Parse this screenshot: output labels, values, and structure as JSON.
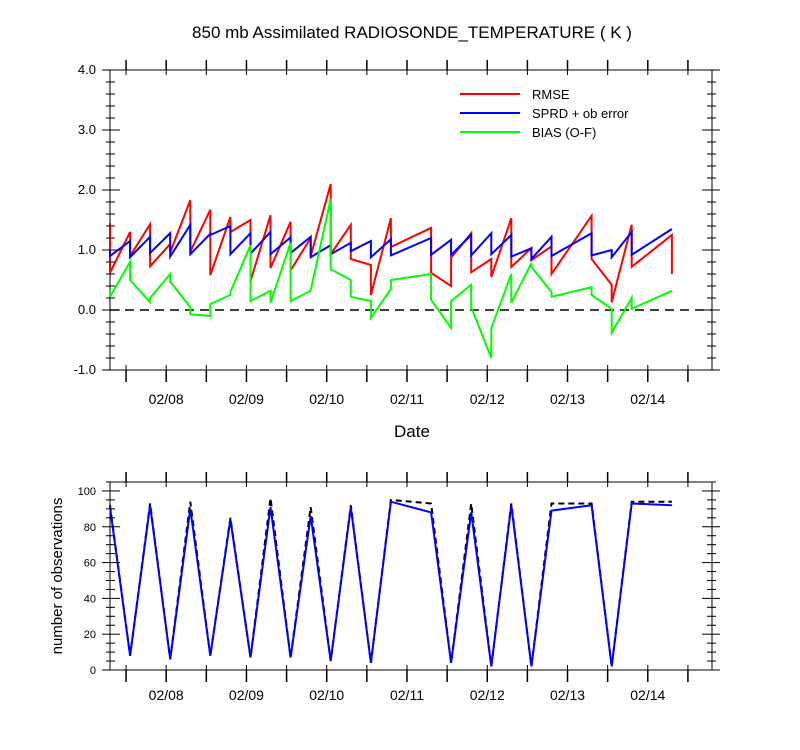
{
  "title": "850 mb Assimilated RADIOSONDE_TEMPERATURE ( K )",
  "colors": {
    "rmse": "#ff0000",
    "sprd": "#0000ff",
    "bias": "#00ff00",
    "possible": "#000000",
    "used": "#0000ff",
    "zero_line": "#000000"
  },
  "chart_data": [
    {
      "type": "line",
      "title": "850 mb Assimilated RADIOSONDE_TEMPERATURE ( K )",
      "xlabel": "Date",
      "ylabel": "",
      "x_ticks": [
        "02/08",
        "02/09",
        "02/10",
        "02/11",
        "02/12",
        "02/13",
        "02/14"
      ],
      "x_tick_positions": [
        1,
        2,
        3,
        4,
        5,
        6,
        7
      ],
      "xlim": [
        0.3,
        7.8
      ],
      "ylim": [
        -1.0,
        4.0
      ],
      "y_ticks": [
        "-1.0",
        "0.0",
        "1.0",
        "2.0",
        "3.0",
        "4.0"
      ],
      "y_tick_values": [
        -1,
        0,
        1,
        2,
        3,
        4
      ],
      "legend": [
        "RMSE",
        "SPRD + ob error",
        "BIAS (O-F)"
      ],
      "legend_position": "top-right",
      "zero_line": {
        "value": 0,
        "style": "dashed"
      },
      "series": [
        {
          "name": "RMSE",
          "color_key": "rmse",
          "points": [
            [
              0.3,
              1.45
            ],
            [
              0.3,
              0.62
            ],
            [
              0.55,
              1.3
            ],
            [
              0.55,
              0.9
            ],
            [
              0.8,
              1.43
            ],
            [
              0.8,
              0.73
            ],
            [
              1.05,
              1.1
            ],
            [
              1.05,
              0.96
            ],
            [
              1.3,
              1.83
            ],
            [
              1.3,
              0.97
            ],
            [
              1.55,
              1.67
            ],
            [
              1.55,
              0.58
            ],
            [
              1.8,
              1.55
            ],
            [
              1.8,
              1.3
            ],
            [
              2.05,
              1.5
            ],
            [
              2.05,
              0.48
            ],
            [
              2.3,
              1.58
            ],
            [
              2.3,
              0.7
            ],
            [
              2.55,
              1.47
            ],
            [
              2.55,
              0.66
            ],
            [
              2.8,
              1.2
            ],
            [
              2.8,
              0.9
            ],
            [
              3.05,
              2.1
            ],
            [
              3.05,
              0.93
            ],
            [
              3.3,
              1.42
            ],
            [
              3.3,
              0.85
            ],
            [
              3.55,
              0.75
            ],
            [
              3.55,
              0.25
            ],
            [
              3.8,
              1.53
            ],
            [
              3.8,
              1.05
            ],
            [
              4.3,
              1.37
            ],
            [
              4.3,
              0.62
            ],
            [
              4.55,
              0.4
            ],
            [
              4.55,
              0.87
            ],
            [
              4.8,
              1.28
            ],
            [
              4.8,
              0.63
            ],
            [
              5.05,
              0.85
            ],
            [
              5.05,
              0.55
            ],
            [
              5.3,
              1.53
            ],
            [
              5.3,
              0.72
            ],
            [
              5.55,
              1.03
            ],
            [
              5.55,
              0.83
            ],
            [
              5.8,
              1.06
            ],
            [
              5.8,
              0.6
            ],
            [
              6.3,
              1.57
            ],
            [
              6.3,
              0.85
            ],
            [
              6.55,
              0.42
            ],
            [
              6.55,
              0.13
            ],
            [
              6.8,
              1.42
            ],
            [
              6.8,
              0.72
            ],
            [
              7.3,
              1.25
            ],
            [
              7.3,
              0.6
            ]
          ]
        },
        {
          "name": "SPRD + ob error",
          "color_key": "sprd",
          "points": [
            [
              0.3,
              1.0
            ],
            [
              0.3,
              0.9
            ],
            [
              0.55,
              1.15
            ],
            [
              0.55,
              0.88
            ],
            [
              0.8,
              1.22
            ],
            [
              0.8,
              0.95
            ],
            [
              1.05,
              1.28
            ],
            [
              1.05,
              0.89
            ],
            [
              1.3,
              1.42
            ],
            [
              1.3,
              0.93
            ],
            [
              1.55,
              1.27
            ],
            [
              1.55,
              1.25
            ],
            [
              1.8,
              1.4
            ],
            [
              1.8,
              0.93
            ],
            [
              2.05,
              1.28
            ],
            [
              2.05,
              0.94
            ],
            [
              2.3,
              1.3
            ],
            [
              2.3,
              0.93
            ],
            [
              2.55,
              1.21
            ],
            [
              2.55,
              0.95
            ],
            [
              2.8,
              1.22
            ],
            [
              2.8,
              0.88
            ],
            [
              3.05,
              1.08
            ],
            [
              3.05,
              0.93
            ],
            [
              3.3,
              1.12
            ],
            [
              3.3,
              0.98
            ],
            [
              3.55,
              1.15
            ],
            [
              3.55,
              0.88
            ],
            [
              3.8,
              1.18
            ],
            [
              3.8,
              0.91
            ],
            [
              4.3,
              1.2
            ],
            [
              4.3,
              0.92
            ],
            [
              4.55,
              1.17
            ],
            [
              4.55,
              0.92
            ],
            [
              4.8,
              1.25
            ],
            [
              4.8,
              0.91
            ],
            [
              5.05,
              1.28
            ],
            [
              5.05,
              0.93
            ],
            [
              5.3,
              1.25
            ],
            [
              5.3,
              0.89
            ],
            [
              5.55,
              1.03
            ],
            [
              5.55,
              0.85
            ],
            [
              5.8,
              1.22
            ],
            [
              5.8,
              0.9
            ],
            [
              6.3,
              1.28
            ],
            [
              6.3,
              0.91
            ],
            [
              6.55,
              1.0
            ],
            [
              6.55,
              0.88
            ],
            [
              6.8,
              1.3
            ],
            [
              6.8,
              0.92
            ],
            [
              7.3,
              1.35
            ]
          ]
        },
        {
          "name": "BIAS (O-F)",
          "color_key": "bias",
          "points": [
            [
              0.3,
              0.35
            ],
            [
              0.3,
              0.22
            ],
            [
              0.55,
              0.8
            ],
            [
              0.55,
              0.5
            ],
            [
              0.8,
              0.13
            ],
            [
              0.8,
              0.2
            ],
            [
              1.05,
              0.6
            ],
            [
              1.05,
              0.47
            ],
            [
              1.3,
              0.05
            ],
            [
              1.3,
              -0.07
            ],
            [
              1.55,
              -0.1
            ],
            [
              1.55,
              0.1
            ],
            [
              1.8,
              0.25
            ],
            [
              1.8,
              0.3
            ],
            [
              2.05,
              1.08
            ],
            [
              2.05,
              0.15
            ],
            [
              2.3,
              0.32
            ],
            [
              2.3,
              0.12
            ],
            [
              2.55,
              1.12
            ],
            [
              2.55,
              0.15
            ],
            [
              2.8,
              0.32
            ],
            [
              2.8,
              0.33
            ],
            [
              3.05,
              1.85
            ],
            [
              3.05,
              0.68
            ],
            [
              3.3,
              0.5
            ],
            [
              3.3,
              0.22
            ],
            [
              3.55,
              0.15
            ],
            [
              3.55,
              -0.13
            ],
            [
              3.8,
              0.35
            ],
            [
              3.8,
              0.5
            ],
            [
              4.3,
              0.6
            ],
            [
              4.3,
              0.17
            ],
            [
              4.55,
              -0.3
            ],
            [
              4.55,
              0.15
            ],
            [
              4.8,
              0.42
            ],
            [
              4.8,
              0.05
            ],
            [
              5.05,
              -0.8
            ],
            [
              5.05,
              -0.3
            ],
            [
              5.3,
              0.6
            ],
            [
              5.3,
              0.12
            ],
            [
              5.55,
              0.78
            ],
            [
              5.55,
              0.72
            ],
            [
              5.8,
              0.3
            ],
            [
              5.8,
              0.22
            ],
            [
              6.3,
              0.38
            ],
            [
              6.3,
              0.25
            ],
            [
              6.55,
              0.02
            ],
            [
              6.55,
              -0.38
            ],
            [
              6.8,
              0.2
            ],
            [
              6.8,
              0.02
            ],
            [
              7.3,
              0.32
            ]
          ]
        }
      ]
    },
    {
      "type": "line",
      "title": "",
      "xlabel": "",
      "ylabel": "number of observations",
      "x_ticks": [
        "02/08",
        "02/09",
        "02/10",
        "02/11",
        "02/12",
        "02/13",
        "02/14"
      ],
      "x_tick_positions": [
        1,
        2,
        3,
        4,
        5,
        6,
        7
      ],
      "xlim": [
        0.3,
        7.8
      ],
      "ylim": [
        0,
        105
      ],
      "y_ticks": [
        "0",
        "20",
        "40",
        "60",
        "80",
        "100"
      ],
      "y_tick_values": [
        0,
        20,
        40,
        60,
        80,
        100
      ],
      "series": [
        {
          "name": "possible",
          "color_key": "possible",
          "style": "dashed",
          "points": [
            [
              0.3,
              92
            ],
            [
              0.55,
              8
            ],
            [
              0.8,
              93
            ],
            [
              1.05,
              6
            ],
            [
              1.3,
              94
            ],
            [
              1.55,
              8
            ],
            [
              1.8,
              85
            ],
            [
              2.05,
              7
            ],
            [
              2.3,
              96
            ],
            [
              2.55,
              7
            ],
            [
              2.8,
              91
            ],
            [
              3.05,
              5
            ],
            [
              3.3,
              92
            ],
            [
              3.55,
              4
            ],
            [
              3.8,
              95
            ],
            [
              4.3,
              93
            ],
            [
              4.55,
              4
            ],
            [
              4.8,
              93
            ],
            [
              5.05,
              2
            ],
            [
              5.3,
              93
            ],
            [
              5.55,
              2
            ],
            [
              5.8,
              93
            ],
            [
              6.3,
              93
            ],
            [
              6.55,
              2
            ],
            [
              6.8,
              94
            ],
            [
              7.3,
              94
            ]
          ]
        },
        {
          "name": "used",
          "color_key": "used",
          "style": "solid",
          "points": [
            [
              0.3,
              91
            ],
            [
              0.55,
              8
            ],
            [
              0.8,
              92
            ],
            [
              1.05,
              6
            ],
            [
              1.3,
              90
            ],
            [
              1.55,
              8
            ],
            [
              1.8,
              84
            ],
            [
              2.05,
              7
            ],
            [
              2.3,
              91
            ],
            [
              2.55,
              7
            ],
            [
              2.8,
              86
            ],
            [
              3.05,
              5
            ],
            [
              3.3,
              91
            ],
            [
              3.55,
              4
            ],
            [
              3.8,
              94
            ],
            [
              4.3,
              88
            ],
            [
              4.55,
              4
            ],
            [
              4.8,
              88
            ],
            [
              5.05,
              2
            ],
            [
              5.3,
              92
            ],
            [
              5.55,
              2
            ],
            [
              5.8,
              89
            ],
            [
              6.3,
              92
            ],
            [
              6.55,
              2
            ],
            [
              6.8,
              93
            ],
            [
              7.3,
              92
            ]
          ]
        }
      ]
    }
  ]
}
